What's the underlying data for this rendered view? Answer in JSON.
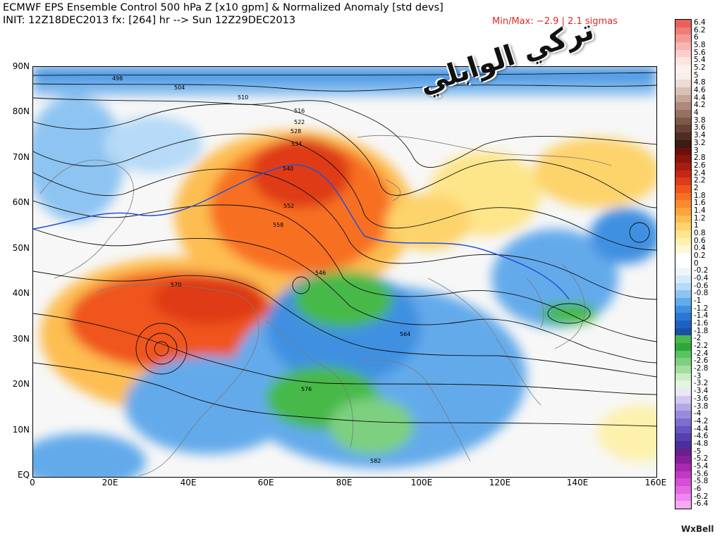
{
  "header": {
    "title_line1": "ECMWF EPS Ensemble Control 500 hPa Z [x10 gpm] & Normalized Anomaly [std devs]",
    "title_line2": "INIT: 12Z18DEC2013 fx: [264] hr --> Sun 12Z29DEC2013",
    "minmax": "Min/Max: −2.9 | 2.1 sigmas"
  },
  "axes": {
    "lat_labels": [
      "90N",
      "80N",
      "70N",
      "60N",
      "50N",
      "40N",
      "30N",
      "20N",
      "10N",
      "EQ"
    ],
    "lon_labels": [
      "0",
      "20E",
      "40E",
      "60E",
      "80E",
      "100E",
      "120E",
      "140E",
      "160E"
    ]
  },
  "colorbar": {
    "labels": [
      "6.4",
      "6.2",
      "6",
      "5.8",
      "5.6",
      "5.4",
      "5.2",
      "5",
      "4.8",
      "4.6",
      "4.4",
      "4.2",
      "4",
      "3.8",
      "3.6",
      "3.4",
      "3.2",
      "3",
      "2.8",
      "2.6",
      "2.4",
      "2.2",
      "2",
      "1.8",
      "1.6",
      "1.4",
      "1.2",
      "1",
      "0.8",
      "0.6",
      "0.4",
      "0.2",
      "0",
      "-0.2",
      "-0.4",
      "-0.6",
      "-0.8",
      "-1",
      "-1.2",
      "-1.4",
      "-1.6",
      "-1.8",
      "-2",
      "-2.2",
      "-2.4",
      "-2.6",
      "-2.8",
      "-3",
      "-3.2",
      "-3.4",
      "-3.6",
      "-3.8",
      "-4",
      "-4.2",
      "-4.4",
      "-4.6",
      "-4.8",
      "-5",
      "-5.2",
      "-5.4",
      "-5.6",
      "-5.8",
      "-6",
      "-6.2",
      "-6.4"
    ],
    "colors": [
      "#e8625a",
      "#ee7d76",
      "#f49a95",
      "#f8b5b2",
      "#fbcecc",
      "#fde3e2",
      "#fff0f0",
      "#f6efe9",
      "#ecdcd3",
      "#d7c1b6",
      "#c4a598",
      "#ae8a7b",
      "#967060",
      "#7c5848",
      "#654235",
      "#4f2e22",
      "#3a1c12",
      "#6b0f0a",
      "#8a150d",
      "#a81d10",
      "#c52714",
      "#de3b19",
      "#ef551d",
      "#f76f24",
      "#fb8a2e",
      "#fca43c",
      "#fdbd51",
      "#fdd36c",
      "#fde58a",
      "#fdf1ad",
      "#fff8d2",
      "#ffffff",
      "#ffffff",
      "#eef6fd",
      "#d5eafb",
      "#b6daf7",
      "#8ec4f2",
      "#63aaeb",
      "#3f90e1",
      "#2a77d4",
      "#1f61c1",
      "#1d4fa6",
      "#47b948",
      "#2ea83b",
      "#58c35f",
      "#7dd07f",
      "#a4df9e",
      "#c8eec2",
      "#e1f6dd",
      "#ece6f9",
      "#d2c8f1",
      "#b6a7e7",
      "#998bdc",
      "#7d6dcf",
      "#6a54c2",
      "#5740b0",
      "#4a2f9c",
      "#6a1f8a",
      "#891e9a",
      "#a82ab0",
      "#c23ac4",
      "#d64ed6",
      "#e468e3",
      "#ef87ec",
      "#f7a9f4"
    ]
  },
  "contours": {
    "z_labels": [
      "498",
      "504",
      "510",
      "516",
      "522",
      "528",
      "534",
      "540",
      "546",
      "552",
      "558",
      "564",
      "570",
      "576",
      "582"
    ]
  },
  "watermark": "تركي الوابلي",
  "brand": "WxBell"
}
